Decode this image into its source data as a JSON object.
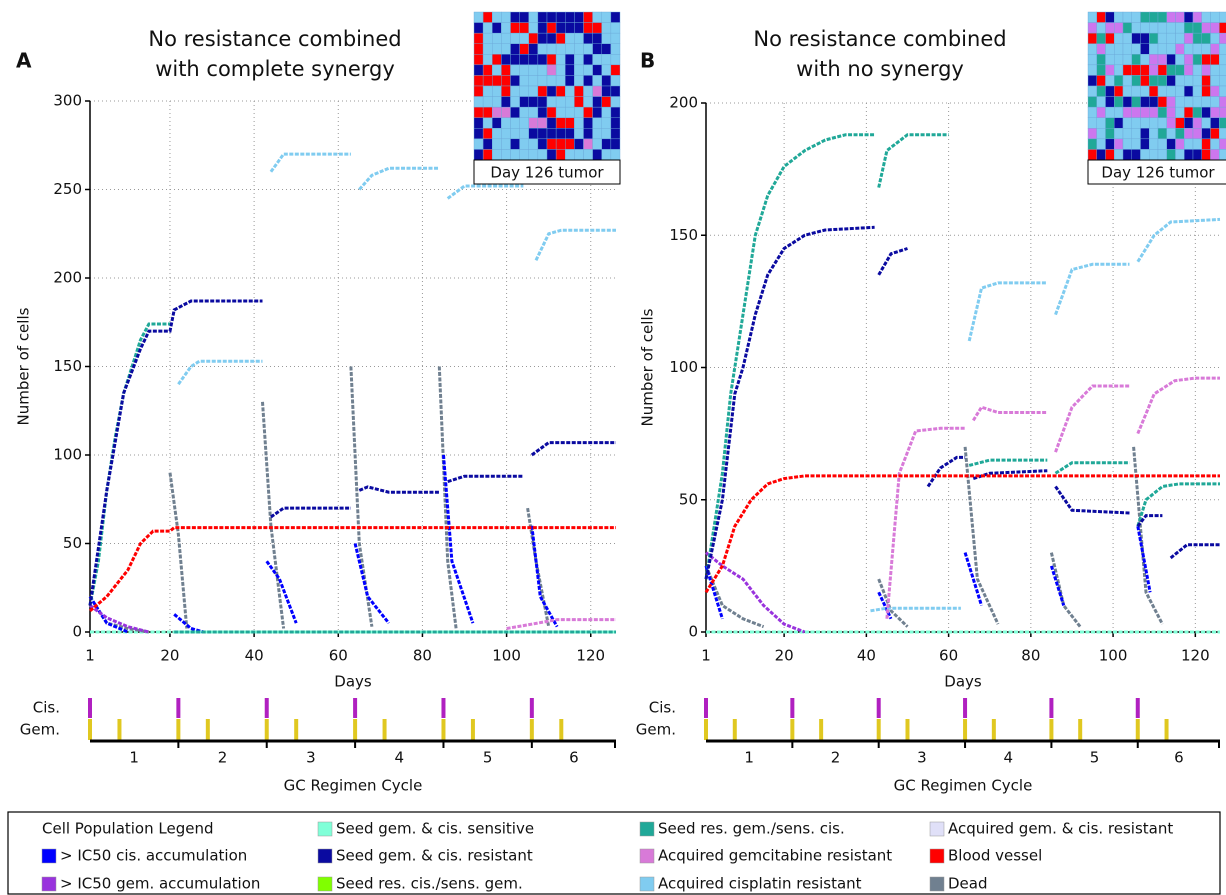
{
  "chart_data": [
    {
      "type": "line",
      "panel": "A",
      "title": [
        "No resistance combined",
        "with complete synergy"
      ],
      "xlabel": "Days",
      "ylabel": "Number of cells",
      "inset_caption": "Day 126 tumor",
      "xlim": [
        1,
        126
      ],
      "ylim": [
        0,
        300
      ],
      "xticks": [
        1,
        20,
        40,
        60,
        80,
        100,
        120
      ],
      "yticks": [
        0,
        50,
        100,
        150,
        200,
        250,
        300
      ],
      "grid": true,
      "series": [
        {
          "name": "Seed gem. & cis. sensitive",
          "color": "#80ffd8",
          "x": [
            1,
            126
          ],
          "values": [
            0,
            0
          ]
        },
        {
          "name": "Dead",
          "color": "#708090",
          "x": [
            1,
            5,
            10,
            15,
            null,
            20,
            22,
            24,
            null,
            42,
            44,
            47,
            null,
            63,
            65,
            68,
            null,
            84,
            86,
            88,
            null,
            105,
            107,
            110
          ],
          "values": [
            20,
            5,
            2,
            0,
            null,
            90,
            55,
            2,
            null,
            130,
            60,
            2,
            null,
            150,
            50,
            3,
            null,
            150,
            40,
            2,
            null,
            70,
            40,
            3
          ]
        },
        {
          "name": "> IC50 cis. accumulation",
          "color": "#0000ff",
          "x": [
            1,
            5,
            10,
            null,
            21,
            25,
            28,
            null,
            43,
            46,
            50,
            null,
            64,
            67,
            72,
            null,
            85,
            87,
            92,
            null,
            106,
            108,
            112
          ],
          "values": [
            20,
            5,
            0,
            null,
            10,
            2,
            0,
            null,
            40,
            30,
            5,
            null,
            50,
            20,
            5,
            null,
            100,
            40,
            5,
            null,
            60,
            20,
            3
          ]
        },
        {
          "name": "> IC50 gem. accumulation",
          "color": "#9933dd",
          "x": [
            1,
            5,
            10,
            15
          ],
          "values": [
            15,
            8,
            3,
            0
          ]
        },
        {
          "name": "Seed res. gem./sens. cis.",
          "color": "#20a898",
          "x": [
            1,
            3,
            5,
            7,
            9,
            11,
            13,
            15,
            20,
            null,
            21,
            126
          ],
          "values": [
            15,
            40,
            80,
            110,
            135,
            150,
            165,
            174,
            174,
            null,
            0,
            0
          ]
        },
        {
          "name": "Acquired gemcitabine resistant",
          "color": "#d87ad8",
          "x": [
            100,
            105,
            112,
            126
          ],
          "values": [
            2,
            4,
            7,
            7
          ]
        },
        {
          "name": "Acquired cisplatin resistant",
          "color": "#80ccf0",
          "x": [
            22,
            25,
            27,
            42,
            null,
            44,
            47,
            63,
            null,
            65,
            68,
            72,
            84,
            null,
            86,
            90,
            104,
            null,
            107,
            110,
            113,
            126
          ],
          "values": [
            140,
            150,
            153,
            153,
            null,
            260,
            270,
            270,
            null,
            250,
            258,
            262,
            262,
            null,
            245,
            252,
            252,
            null,
            210,
            225,
            227,
            227
          ]
        },
        {
          "name": "Seed gem. & cis. resistant",
          "color": "#0a0aa0",
          "x": [
            1,
            5,
            9,
            13,
            15,
            20,
            21,
            25,
            42,
            null,
            44,
            47,
            63,
            null,
            65,
            67,
            72,
            84,
            null,
            86,
            90,
            104,
            null,
            106,
            110,
            126
          ],
          "values": [
            15,
            80,
            135,
            160,
            170,
            170,
            182,
            187,
            187,
            null,
            65,
            70,
            70,
            null,
            80,
            82,
            79,
            79,
            null,
            85,
            88,
            88,
            null,
            100,
            107,
            107
          ]
        },
        {
          "name": "Blood vessel",
          "color": "#ff0000",
          "x": [
            1,
            5,
            10,
            13,
            16,
            20,
            21,
            126
          ],
          "values": [
            12,
            20,
            35,
            50,
            57,
            57,
            59,
            59
          ]
        }
      ],
      "regimen": {
        "cis_label": "Cis.",
        "gem_label": "Gem.",
        "xlabel": "GC Regimen Cycle",
        "cis_color": "#b020c0",
        "gem_color": "#e0c820",
        "cis_days": [
          1,
          22,
          43,
          64,
          85,
          106
        ],
        "gem_days": [
          1,
          8,
          22,
          29,
          43,
          50,
          64,
          71,
          85,
          92,
          106,
          113
        ],
        "cycles": [
          "1",
          "2",
          "3",
          "4",
          "5",
          "6"
        ]
      }
    },
    {
      "type": "line",
      "panel": "B",
      "title": [
        "No resistance combined",
        "with no synergy"
      ],
      "xlabel": "Days",
      "ylabel": "Number of cells",
      "inset_caption": "Day 126 tumor",
      "xlim": [
        1,
        126
      ],
      "ylim": [
        0,
        200
      ],
      "xticks": [
        1,
        20,
        40,
        60,
        80,
        100,
        120
      ],
      "yticks": [
        0,
        50,
        100,
        150,
        200
      ],
      "grid": true,
      "series": [
        {
          "name": "Seed gem. & cis. sensitive",
          "color": "#80ffd8",
          "x": [
            1,
            126
          ],
          "values": [
            0,
            0
          ]
        },
        {
          "name": "Dead",
          "color": "#708090",
          "x": [
            1,
            5,
            10,
            15,
            null,
            43,
            46,
            50,
            null,
            64,
            67,
            72,
            null,
            85,
            88,
            92,
            null,
            105,
            108,
            112
          ],
          "values": [
            25,
            10,
            5,
            2,
            null,
            20,
            8,
            2,
            null,
            70,
            20,
            3,
            null,
            30,
            10,
            2,
            null,
            70,
            15,
            3
          ]
        },
        {
          "name": "> IC50 cis. accumulation",
          "color": "#0000ff",
          "x": [
            1,
            5,
            null,
            43,
            46,
            null,
            64,
            68,
            null,
            85,
            88,
            null,
            106,
            109
          ],
          "values": [
            25,
            5,
            null,
            15,
            5,
            null,
            30,
            10,
            null,
            25,
            10,
            null,
            40,
            15
          ]
        },
        {
          "name": "> IC50 gem. accumulation",
          "color": "#9933dd",
          "x": [
            1,
            5,
            10,
            15,
            20,
            25
          ],
          "values": [
            30,
            25,
            20,
            10,
            3,
            0
          ]
        },
        {
          "name": "Seed res. gem./sens. cis.",
          "color": "#20a898",
          "x": [
            1,
            3,
            5,
            7,
            9,
            11,
            13,
            16,
            20,
            25,
            30,
            35,
            42,
            null,
            43,
            45,
            50,
            60,
            null,
            65,
            70,
            84,
            null,
            86,
            90,
            104,
            null,
            106,
            108,
            112,
            116,
            126
          ],
          "values": [
            20,
            40,
            60,
            90,
            110,
            130,
            150,
            165,
            176,
            182,
            186,
            188,
            188,
            null,
            168,
            182,
            188,
            188,
            null,
            63,
            65,
            65,
            null,
            60,
            64,
            64,
            null,
            40,
            50,
            55,
            56,
            56
          ]
        },
        {
          "name": "Acquired cisplatin resistant",
          "color": "#80ccf0",
          "x": [
            41,
            45,
            63,
            null,
            65,
            68,
            72,
            84,
            null,
            86,
            90,
            95,
            104,
            null,
            106,
            110,
            114,
            126
          ],
          "values": [
            8,
            9,
            9,
            null,
            110,
            130,
            132,
            132,
            null,
            120,
            137,
            139,
            139,
            null,
            140,
            150,
            155,
            156
          ]
        },
        {
          "name": "Acquired gemcitabine resistant",
          "color": "#d87ad8",
          "x": [
            45,
            48,
            52,
            58,
            64,
            null,
            66,
            68,
            72,
            84,
            null,
            86,
            90,
            95,
            104,
            null,
            106,
            110,
            115,
            120,
            126
          ],
          "values": [
            5,
            60,
            76,
            77,
            77,
            null,
            80,
            85,
            83,
            83,
            null,
            68,
            85,
            93,
            93,
            null,
            75,
            90,
            95,
            96,
            96
          ]
        },
        {
          "name": "Seed gem. & cis. resistant",
          "color": "#0a0aa0",
          "x": [
            1,
            5,
            8,
            10,
            13,
            16,
            20,
            25,
            30,
            42,
            null,
            43,
            46,
            50,
            null,
            55,
            58,
            62,
            64,
            null,
            66,
            70,
            84,
            null,
            86,
            90,
            104,
            null,
            106,
            108,
            112,
            null,
            114,
            118,
            126
          ],
          "values": [
            20,
            50,
            90,
            100,
            120,
            135,
            145,
            150,
            152,
            153,
            null,
            135,
            143,
            145,
            null,
            55,
            62,
            66,
            66,
            null,
            58,
            60,
            61,
            null,
            55,
            46,
            45,
            null,
            40,
            44,
            44,
            null,
            28,
            33,
            33
          ]
        },
        {
          "name": "Blood vessel",
          "color": "#ff0000",
          "x": [
            1,
            5,
            8,
            12,
            16,
            20,
            25,
            126
          ],
          "values": [
            15,
            25,
            40,
            50,
            56,
            58,
            59,
            59
          ]
        }
      ],
      "regimen": {
        "cis_label": "Cis.",
        "gem_label": "Gem.",
        "xlabel": "GC Regimen Cycle",
        "cis_color": "#b020c0",
        "gem_color": "#e0c820",
        "cis_days": [
          1,
          22,
          43,
          64,
          85,
          106
        ],
        "gem_days": [
          1,
          8,
          22,
          29,
          43,
          50,
          64,
          71,
          85,
          92,
          106,
          113
        ],
        "cycles": [
          "1",
          "2",
          "3",
          "4",
          "5",
          "6"
        ]
      }
    }
  ],
  "legend": {
    "title": "Cell Population Legend",
    "items": [
      {
        "name": "> IC50 cis. accumulation",
        "color": "#0000ff"
      },
      {
        "name": "> IC50 gem. accumulation",
        "color": "#9933dd"
      },
      {
        "name": "Seed gem. & cis. sensitive",
        "color": "#80ffd8"
      },
      {
        "name": "Seed gem. & cis. resistant",
        "color": "#0a0aa0"
      },
      {
        "name": "Seed res. cis./sens. gem.",
        "color": "#80ff00"
      },
      {
        "name": "Seed res. gem./sens. cis.",
        "color": "#20a898"
      },
      {
        "name": "Acquired gemcitabine resistant",
        "color": "#d87ad8"
      },
      {
        "name": "Acquired cisplatin resistant",
        "color": "#80ccf0"
      },
      {
        "name": "Acquired gem. & cis. resistant",
        "color": "#e0e0f8"
      },
      {
        "name": "Blood vessel",
        "color": "#ff0000"
      },
      {
        "name": "Dead",
        "color": "#708090"
      }
    ]
  }
}
